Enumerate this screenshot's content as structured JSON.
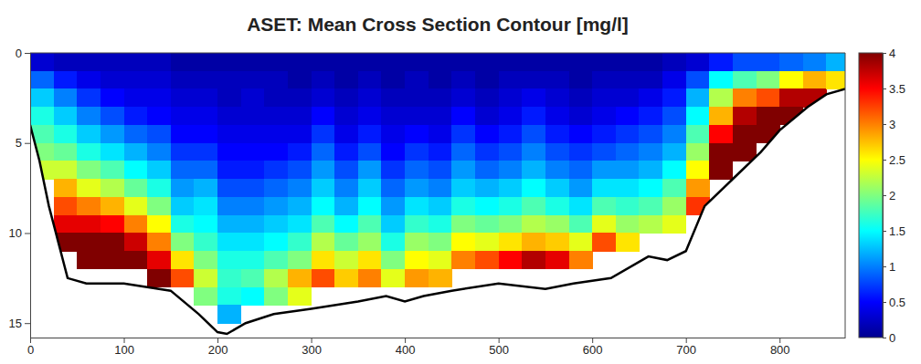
{
  "chart_data": {
    "type": "heatmap",
    "title": "ASET: Mean Cross Section Contour [mg/l]",
    "xlim": [
      0,
      870
    ],
    "ylim": [
      0,
      15.8
    ],
    "xticks": [
      0,
      100,
      200,
      300,
      400,
      500,
      600,
      700,
      800
    ],
    "yticks": [
      0,
      5,
      10,
      15
    ],
    "x": [
      12.5,
      37.5,
      62.5,
      87.5,
      112.5,
      137.5,
      162.5,
      187.5,
      212.5,
      237.5,
      262.5,
      287.5,
      312.5,
      337.5,
      362.5,
      387.5,
      412.5,
      437.5,
      462.5,
      487.5,
      512.5,
      537.5,
      562.5,
      587.5,
      612.5,
      637.5,
      662.5,
      687.5,
      712.5,
      737.5,
      762.5,
      787.5,
      812.5,
      837.5,
      862.5
    ],
    "y": [
      0.5,
      1.5,
      2.5,
      3.5,
      4.5,
      5.5,
      6.5,
      7.5,
      8.5,
      9.5,
      10.5,
      11.5,
      12.5,
      13.5,
      14.5,
      15.5
    ],
    "z": [
      [
        0.3,
        0.9,
        1.3,
        1.6,
        1.8,
        2.0,
        2.3,
        null,
        null,
        null,
        null,
        null,
        null,
        null,
        null,
        null
      ],
      [
        0.2,
        0.6,
        1.0,
        1.3,
        1.6,
        1.9,
        2.3,
        2.8,
        3.2,
        3.6,
        4.0,
        null,
        null,
        null,
        null,
        null
      ],
      [
        0.2,
        0.4,
        0.7,
        1.0,
        1.3,
        1.6,
        2.0,
        2.4,
        3.0,
        3.6,
        4.0,
        4.0,
        null,
        null,
        null,
        null
      ],
      [
        0.2,
        0.3,
        0.5,
        0.8,
        1.1,
        1.4,
        1.8,
        2.2,
        2.8,
        3.5,
        4.0,
        4.0,
        null,
        null,
        null,
        null
      ],
      [
        0.2,
        0.3,
        0.4,
        0.6,
        0.9,
        1.2,
        1.5,
        1.9,
        2.4,
        3.0,
        3.7,
        4.0,
        null,
        null,
        null,
        null
      ],
      [
        0.2,
        0.3,
        0.4,
        0.5,
        0.8,
        1.0,
        1.3,
        1.6,
        2.0,
        2.5,
        3.0,
        3.6,
        4.0,
        null,
        null,
        null
      ],
      [
        0.1,
        0.2,
        0.3,
        0.4,
        0.5,
        0.7,
        0.9,
        1.1,
        1.3,
        1.6,
        2.0,
        2.6,
        3.2,
        null,
        null,
        null
      ],
      [
        0.1,
        0.2,
        0.3,
        0.4,
        0.5,
        0.7,
        0.9,
        1.2,
        1.4,
        1.5,
        1.7,
        2.0,
        2.3,
        2.0,
        null,
        null
      ],
      [
        0.1,
        0.2,
        0.2,
        0.3,
        0.4,
        0.5,
        0.6,
        0.8,
        1.0,
        1.2,
        1.4,
        1.6,
        1.7,
        1.6,
        1.2,
        null
      ],
      [
        0.1,
        0.2,
        0.3,
        0.3,
        0.4,
        0.5,
        0.6,
        0.8,
        1.0,
        1.2,
        1.4,
        1.6,
        1.8,
        1.5,
        null,
        null
      ],
      [
        0.1,
        0.2,
        0.2,
        0.3,
        0.4,
        0.5,
        0.7,
        0.9,
        1.1,
        1.3,
        1.5,
        1.8,
        2.2,
        2.0,
        null,
        null
      ],
      [
        0.1,
        0.1,
        0.2,
        0.3,
        0.4,
        0.6,
        0.8,
        1.0,
        1.2,
        1.4,
        1.7,
        2.0,
        2.8,
        2.4,
        null,
        null
      ],
      [
        0.1,
        0.2,
        0.3,
        0.5,
        0.7,
        0.9,
        1.1,
        1.3,
        1.5,
        1.8,
        2.2,
        2.6,
        3.2,
        null,
        null,
        null
      ],
      [
        0.1,
        0.1,
        0.2,
        0.3,
        0.4,
        0.6,
        0.8,
        1.0,
        1.2,
        1.5,
        1.9,
        2.3,
        2.7,
        null,
        null,
        null
      ],
      [
        0.1,
        0.2,
        0.3,
        0.4,
        0.6,
        0.8,
        1.1,
        1.3,
        1.5,
        1.8,
        2.1,
        2.6,
        3.0,
        null,
        null,
        null
      ],
      [
        0.1,
        0.1,
        0.2,
        0.3,
        0.4,
        0.5,
        0.7,
        0.9,
        1.1,
        1.3,
        1.6,
        2.0,
        2.4,
        null,
        null,
        null
      ],
      [
        0.1,
        0.2,
        0.2,
        0.3,
        0.5,
        0.7,
        0.9,
        1.1,
        1.4,
        1.7,
        2.1,
        2.5,
        2.9,
        null,
        null,
        null
      ],
      [
        0.1,
        0.1,
        0.2,
        0.3,
        0.4,
        0.6,
        0.8,
        1.0,
        1.3,
        1.6,
        2.0,
        2.4,
        2.8,
        null,
        null,
        null
      ],
      [
        0.1,
        0.2,
        0.3,
        0.5,
        0.7,
        0.9,
        1.1,
        1.3,
        1.6,
        2.0,
        2.5,
        3.0,
        null,
        null,
        null,
        null
      ],
      [
        0.1,
        0.1,
        0.2,
        0.3,
        0.5,
        0.7,
        0.9,
        1.2,
        1.5,
        1.9,
        2.4,
        3.2,
        null,
        null,
        null,
        null
      ],
      [
        0.1,
        0.2,
        0.3,
        0.4,
        0.6,
        0.8,
        1.0,
        1.3,
        1.6,
        2.0,
        2.6,
        3.5,
        null,
        null,
        null,
        null
      ],
      [
        0.1,
        0.2,
        0.4,
        0.6,
        0.8,
        1.0,
        1.2,
        1.5,
        1.8,
        2.2,
        2.8,
        3.8,
        null,
        null,
        null,
        null
      ],
      [
        0.1,
        0.2,
        0.3,
        0.4,
        0.6,
        0.8,
        1.0,
        1.3,
        1.6,
        2.1,
        2.7,
        3.6,
        null,
        null,
        null,
        null
      ],
      [
        0.1,
        0.1,
        0.2,
        0.3,
        0.5,
        0.7,
        0.9,
        1.1,
        1.4,
        1.8,
        2.4,
        3.0,
        null,
        null,
        null,
        null
      ],
      [
        0.1,
        0.2,
        0.3,
        0.4,
        0.6,
        0.8,
        1.1,
        1.4,
        1.8,
        2.4,
        3.2,
        null,
        null,
        null,
        null,
        null
      ],
      [
        0.1,
        0.2,
        0.3,
        0.5,
        0.7,
        0.9,
        1.1,
        1.4,
        1.7,
        2.1,
        2.6,
        null,
        null,
        null,
        null,
        null
      ],
      [
        0.1,
        0.2,
        0.4,
        0.6,
        0.8,
        1.0,
        1.2,
        1.5,
        1.8,
        2.2,
        null,
        null,
        null,
        null,
        null,
        null
      ],
      [
        0.2,
        0.4,
        0.6,
        0.8,
        1.0,
        1.2,
        1.5,
        1.8,
        2.1,
        2.4,
        null,
        null,
        null,
        null,
        null,
        null
      ],
      [
        0.3,
        0.8,
        1.2,
        1.5,
        1.8,
        2.1,
        2.5,
        2.9,
        3.3,
        null,
        null,
        null,
        null,
        null,
        null,
        null
      ],
      [
        0.6,
        1.5,
        2.2,
        2.8,
        3.5,
        4.0,
        4.0,
        null,
        null,
        null,
        null,
        null,
        null,
        null,
        null,
        null
      ],
      [
        0.8,
        1.8,
        3.0,
        3.8,
        4.0,
        4.0,
        null,
        null,
        null,
        null,
        null,
        null,
        null,
        null,
        null,
        null
      ],
      [
        0.8,
        2.0,
        3.2,
        4.0,
        4.0,
        null,
        null,
        null,
        null,
        null,
        null,
        null,
        null,
        null,
        null,
        null
      ],
      [
        0.9,
        2.5,
        3.8,
        4.0,
        null,
        null,
        null,
        null,
        null,
        null,
        null,
        null,
        null,
        null,
        null,
        null
      ],
      [
        1.0,
        2.8,
        3.8,
        null,
        null,
        null,
        null,
        null,
        null,
        null,
        null,
        null,
        null,
        null,
        null,
        null
      ],
      [
        1.2,
        2.6,
        null,
        null,
        null,
        null,
        null,
        null,
        null,
        null,
        null,
        null,
        null,
        null,
        null,
        null
      ]
    ],
    "bed": {
      "x": [
        0,
        10,
        20,
        30,
        40,
        60,
        100,
        150,
        180,
        200,
        210,
        230,
        260,
        300,
        350,
        380,
        400,
        420,
        450,
        500,
        550,
        580,
        620,
        660,
        680,
        700,
        720,
        750,
        780,
        800,
        830,
        850,
        870
      ],
      "depth": [
        4,
        6,
        8.5,
        10.5,
        12.5,
        12.8,
        12.8,
        13.2,
        14.5,
        15.5,
        15.6,
        15.0,
        14.5,
        14.2,
        13.8,
        13.5,
        13.8,
        13.5,
        13.2,
        12.8,
        13.1,
        12.8,
        12.5,
        11.3,
        11.5,
        11.0,
        8.5,
        7,
        5.5,
        4.3,
        3,
        2.3,
        2
      ]
    },
    "colorbar": {
      "range": [
        0,
        4
      ],
      "ticks": [
        0,
        0.5,
        1,
        1.5,
        2,
        2.5,
        3,
        3.5,
        4
      ]
    }
  }
}
